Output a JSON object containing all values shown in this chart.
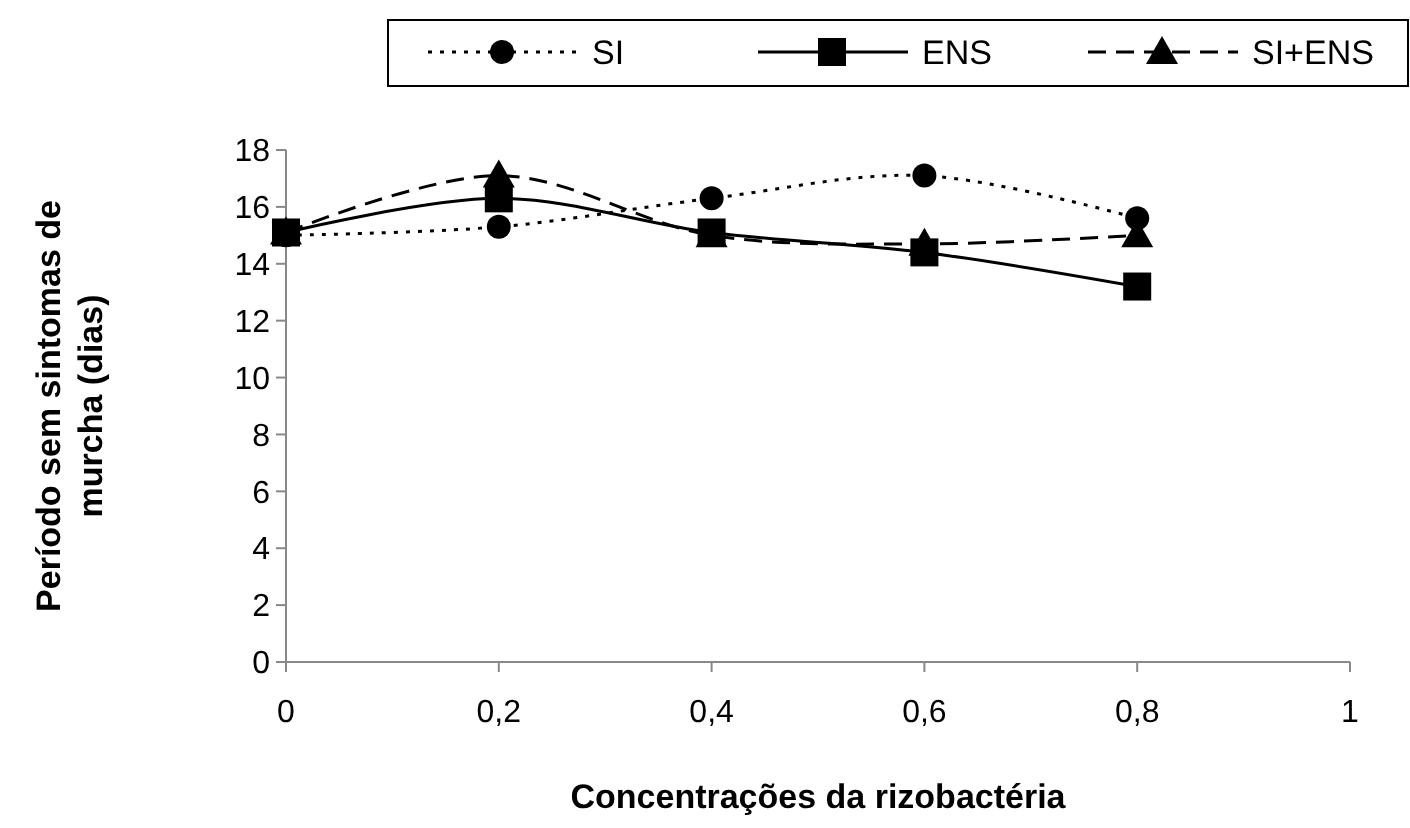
{
  "chart_data": {
    "type": "line",
    "xlabel": "Concentrações da rizobactéria",
    "ylabel": "Período sem sintomas de murcha (dias)",
    "x": [
      0,
      0.2,
      0.4,
      0.6,
      0.8
    ],
    "series": [
      {
        "name": "SI",
        "color": "#000000",
        "values": [
          15,
          15.3,
          16.3,
          17.1,
          15.6
        ],
        "marker": "circle",
        "line_style": "dotted"
      },
      {
        "name": "ENS",
        "color": "#000000",
        "values": [
          15.1,
          16.3,
          15.1,
          14.4,
          13.2
        ],
        "marker": "square",
        "line_style": "solid"
      },
      {
        "name": "SI+ENS",
        "color": "#000000",
        "values": [
          15.1,
          17.1,
          15,
          14.7,
          15
        ],
        "marker": "triangle",
        "line_style": "dashed"
      }
    ],
    "xlim": [
      0,
      1
    ],
    "xticks": [
      0,
      {
        "value": 0.2,
        "label": "0,2"
      },
      {
        "value": 0.4,
        "label": "0,4"
      },
      {
        "value": 0.6,
        "label": "0,6"
      },
      {
        "value": 0.8,
        "label": "0,8"
      },
      1
    ],
    "ylim": [
      0,
      18
    ],
    "yticks": [
      0,
      2,
      4,
      6,
      8,
      10,
      12,
      14,
      16,
      18
    ],
    "grid": false,
    "legend": "top"
  }
}
